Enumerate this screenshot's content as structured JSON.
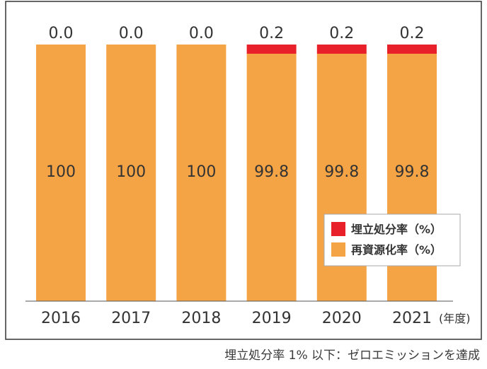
{
  "chart_data": {
    "type": "bar",
    "stacked": true,
    "categories": [
      "2016",
      "2017",
      "2018",
      "2019",
      "2020",
      "2021"
    ],
    "series": [
      {
        "name": "再資源化率（%）",
        "values": [
          100,
          100,
          100,
          99.8,
          99.8,
          99.8
        ],
        "value_labels": [
          "100",
          "100",
          "100",
          "99.8",
          "99.8",
          "99.8"
        ],
        "color": "#F5A445"
      },
      {
        "name": "埋立処分率（%）",
        "values": [
          0.0,
          0.0,
          0.0,
          0.2,
          0.2,
          0.2
        ],
        "value_labels": [
          "0.0",
          "0.0",
          "0.0",
          "0.2",
          "0.2",
          "0.2"
        ],
        "color": "#E8202A"
      }
    ],
    "ylim": [
      0,
      100
    ],
    "x_unit": "(年度)",
    "legend": {
      "position": "bottom-right",
      "entries": [
        "埋立処分率（%）",
        "再資源化率（%）"
      ]
    },
    "grid": false
  },
  "caption": "埋立処分率 1% 以下：ゼロエミッションを達成"
}
